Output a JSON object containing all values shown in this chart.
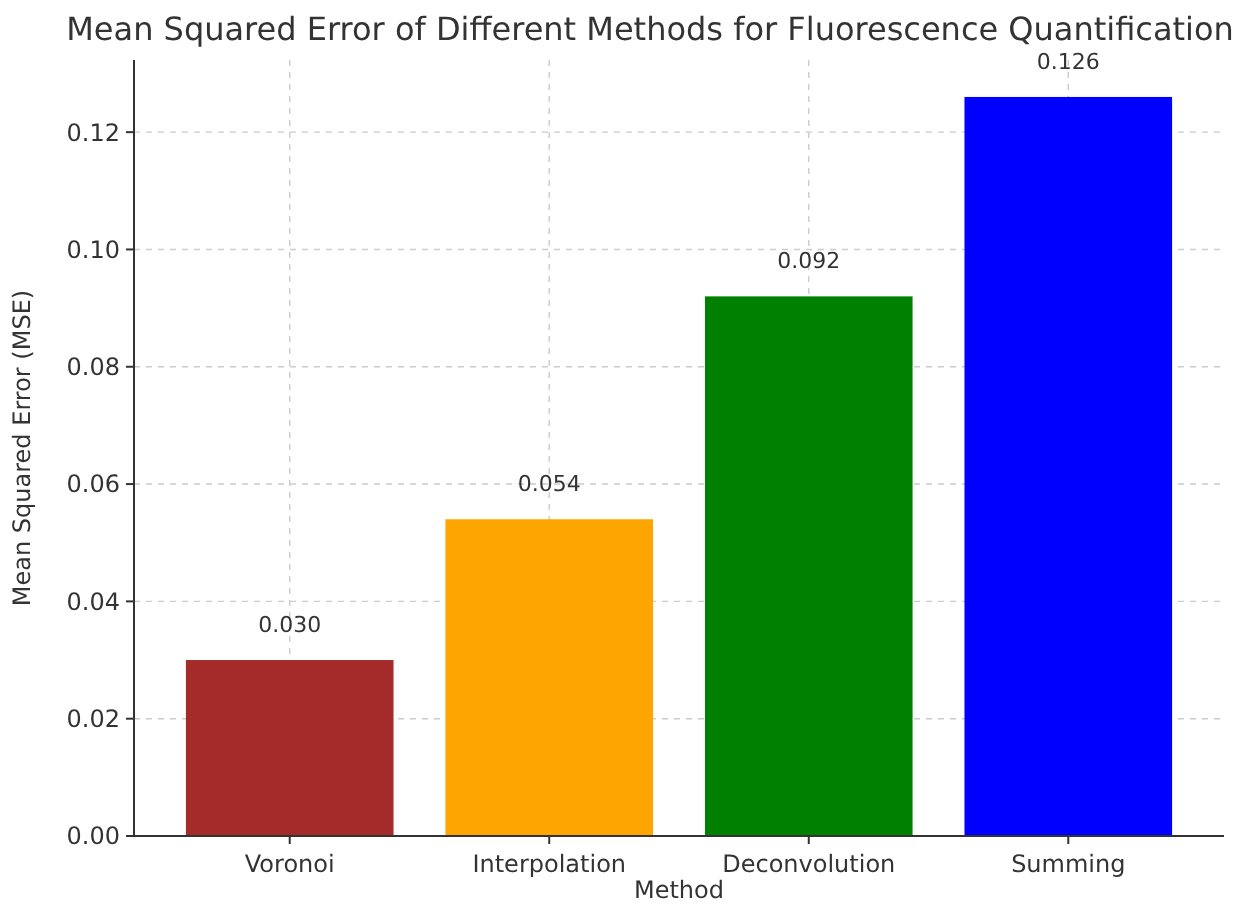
{
  "chart_data": {
    "type": "bar",
    "title": "Mean Squared Error of Different Methods for Fluorescence Quantification",
    "xlabel": "Method",
    "ylabel": "Mean Squared Error (MSE)",
    "categories": [
      "Voronoi",
      "Interpolation",
      "Deconvolution",
      "Summing"
    ],
    "values": [
      0.03,
      0.054,
      0.092,
      0.126
    ],
    "colors": [
      "#a52a2a",
      "#ffa500",
      "#008000",
      "#0000ff"
    ],
    "value_labels": [
      "0.030",
      "0.054",
      "0.092",
      "0.126"
    ],
    "ylim": [
      0,
      0.1323
    ],
    "yticks": [
      {
        "value": 0,
        "label": "0.00"
      },
      {
        "value": 0.02,
        "label": "0.02"
      },
      {
        "value": 0.04,
        "label": "0.04"
      },
      {
        "value": 0.06,
        "label": "0.06"
      },
      {
        "value": 0.08,
        "label": "0.08"
      },
      {
        "value": 0.1,
        "label": "0.10"
      },
      {
        "value": 0.12,
        "label": "0.12"
      }
    ],
    "grid": true
  }
}
